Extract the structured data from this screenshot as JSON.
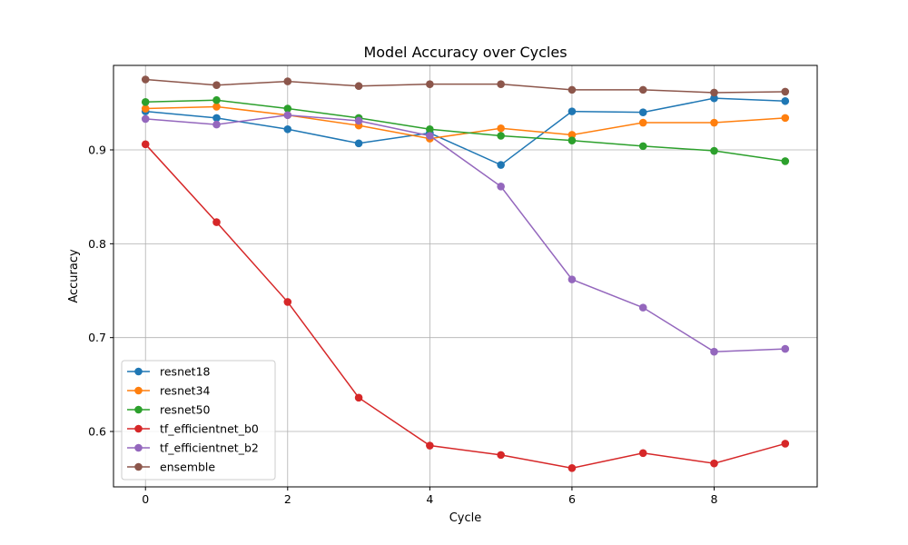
{
  "chart_data": {
    "type": "line",
    "title": "Model Accuracy over Cycles",
    "xlabel": "Cycle",
    "ylabel": "Accuracy",
    "x": [
      0,
      1,
      2,
      3,
      4,
      5,
      6,
      7,
      8,
      9
    ],
    "xlim": [
      -0.45,
      9.45
    ],
    "ylim": [
      0.541,
      0.99
    ],
    "xticks": [
      0,
      2,
      4,
      6,
      8
    ],
    "yticks": [
      0.6,
      0.7,
      0.8,
      0.9
    ],
    "xtick_labels": [
      "0",
      "2",
      "4",
      "6",
      "8"
    ],
    "ytick_labels": [
      "0.6",
      "0.7",
      "0.8",
      "0.9"
    ],
    "grid": true,
    "legend_position": "lower-left",
    "series": [
      {
        "name": "resnet18",
        "color": "#1f77b4",
        "values": [
          0.941,
          0.934,
          0.922,
          0.907,
          0.918,
          0.884,
          0.941,
          0.94,
          0.955,
          0.952
        ]
      },
      {
        "name": "resnet34",
        "color": "#ff7f0e",
        "values": [
          0.944,
          0.946,
          0.937,
          0.926,
          0.912,
          0.923,
          0.916,
          0.929,
          0.929,
          0.934
        ]
      },
      {
        "name": "resnet50",
        "color": "#2ca02c",
        "values": [
          0.951,
          0.953,
          0.944,
          0.934,
          0.922,
          0.915,
          0.91,
          0.904,
          0.899,
          0.888
        ]
      },
      {
        "name": "tf_efficientnet_b0",
        "color": "#d62728",
        "values": [
          0.906,
          0.823,
          0.738,
          0.636,
          0.585,
          0.575,
          0.561,
          0.577,
          0.566,
          0.587
        ]
      },
      {
        "name": "tf_efficientnet_b2",
        "color": "#9467bd",
        "values": [
          0.933,
          0.927,
          0.937,
          0.931,
          0.915,
          0.861,
          0.762,
          0.732,
          0.685,
          0.688
        ]
      },
      {
        "name": "ensemble",
        "color": "#8c564b",
        "values": [
          0.975,
          0.969,
          0.973,
          0.968,
          0.97,
          0.97,
          0.964,
          0.964,
          0.961,
          0.962
        ]
      }
    ]
  }
}
